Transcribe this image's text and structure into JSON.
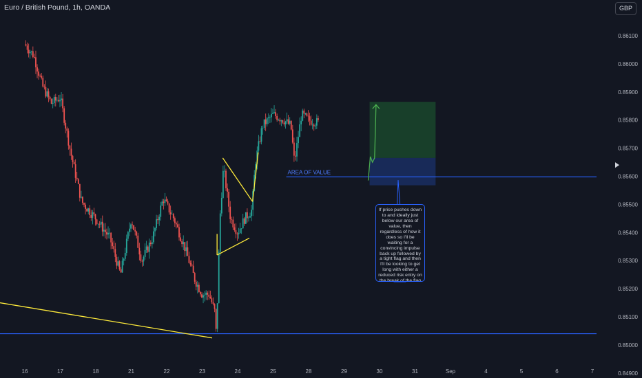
{
  "header": {
    "title": "Euro / British Pound, 1h, OANDA",
    "currency_button": "GBP"
  },
  "annotations": {
    "area_of_value_label": "AREA OF VALUE",
    "note": "If price pushes down to and ideally just below our area of value, then regardless of how it does so I'll be waiting for a convincing impulse back up followed by a tight flag and then I'll be looking to get long with either a reduced risk entry on the break of the flag or a risk entry within it."
  },
  "colors": {
    "background": "#131722",
    "bull": "#26a69a",
    "bear": "#ef5350",
    "level_line": "#2962ff",
    "trendline": "#ffeb3b",
    "target_zone": "#1b4d2e",
    "stop_zone": "#1a2f66",
    "projection": "#4caf50"
  },
  "chart_data": {
    "type": "candlestick",
    "title": "Euro / British Pound, 1h, OANDA",
    "x_tick_labels": [
      "16",
      "17",
      "18",
      "21",
      "22",
      "23",
      "24",
      "25",
      "28",
      "29",
      "30",
      "31",
      "Sep",
      "4",
      "5",
      "6",
      "7"
    ],
    "y_tick_labels": [
      "0.86100",
      "0.86000",
      "0.85900",
      "0.85800",
      "0.85700",
      "0.85600",
      "0.85500",
      "0.85400",
      "0.85300",
      "0.85200",
      "0.85100",
      "0.85000",
      "0.84900"
    ],
    "y_ticks": [
      0.861,
      0.86,
      0.859,
      0.858,
      0.857,
      0.856,
      0.855,
      0.854,
      0.853,
      0.852,
      0.851,
      0.85,
      0.849
    ],
    "ylim": [
      0.8485,
      0.8624
    ],
    "price_path": [
      {
        "x": 0.0,
        "y": 0.8607
      },
      {
        "x": 0.25,
        "y": 0.8603
      },
      {
        "x": 0.5,
        "y": 0.8592
      },
      {
        "x": 0.75,
        "y": 0.8586
      },
      {
        "x": 1.0,
        "y": 0.8588
      },
      {
        "x": 1.3,
        "y": 0.8568
      },
      {
        "x": 1.6,
        "y": 0.8551
      },
      {
        "x": 2.0,
        "y": 0.8545
      },
      {
        "x": 2.4,
        "y": 0.8538
      },
      {
        "x": 2.7,
        "y": 0.8525
      },
      {
        "x": 3.0,
        "y": 0.8545
      },
      {
        "x": 3.3,
        "y": 0.853
      },
      {
        "x": 3.6,
        "y": 0.8538
      },
      {
        "x": 3.9,
        "y": 0.8552
      },
      {
        "x": 4.2,
        "y": 0.8545
      },
      {
        "x": 4.5,
        "y": 0.8535
      },
      {
        "x": 4.8,
        "y": 0.8523
      },
      {
        "x": 5.0,
        "y": 0.8518
      },
      {
        "x": 5.2,
        "y": 0.8518
      },
      {
        "x": 5.35,
        "y": 0.8512
      },
      {
        "x": 5.4,
        "y": 0.8503
      },
      {
        "x": 5.5,
        "y": 0.8545
      },
      {
        "x": 5.6,
        "y": 0.8563
      },
      {
        "x": 5.8,
        "y": 0.8545
      },
      {
        "x": 6.0,
        "y": 0.854
      },
      {
        "x": 6.2,
        "y": 0.8545
      },
      {
        "x": 6.4,
        "y": 0.8548
      },
      {
        "x": 6.5,
        "y": 0.8565
      },
      {
        "x": 6.7,
        "y": 0.8578
      },
      {
        "x": 7.0,
        "y": 0.8582
      },
      {
        "x": 7.3,
        "y": 0.858
      },
      {
        "x": 7.5,
        "y": 0.8578
      },
      {
        "x": 7.6,
        "y": 0.8565
      },
      {
        "x": 7.8,
        "y": 0.8582
      },
      {
        "x": 8.0,
        "y": 0.858
      },
      {
        "x": 8.3,
        "y": 0.8579
      }
    ],
    "horizontal_levels": [
      {
        "price": 0.85598,
        "x_start": 7.37
      },
      {
        "price": 0.8504,
        "x_start": -0.7
      }
    ],
    "trendlines": [
      {
        "x1": -0.7,
        "y1": 0.8515,
        "x2": 5.28,
        "y2": 0.85025
      },
      {
        "x1": 5.42,
        "y1": 0.8532,
        "x2": 6.33,
        "y2": 0.8538
      },
      {
        "x1": 5.58,
        "y1": 0.85665,
        "x2": 6.42,
        "y2": 0.8551
      },
      {
        "x1": 6.42,
        "y1": 0.8551,
        "x2": 6.58,
        "y2": 0.85685
      },
      {
        "x1": 5.42,
        "y1": 0.8532,
        "x2": 5.42,
        "y2": 0.85395
      }
    ],
    "position_tool": {
      "x_start": 9.72,
      "x_end": 11.58,
      "target_top": 0.85865,
      "entry": 0.85665,
      "stop_bottom": 0.85568
    },
    "projection_path": [
      {
        "x": 9.68,
        "y": 0.85585
      },
      {
        "x": 9.74,
        "y": 0.8567
      },
      {
        "x": 9.8,
        "y": 0.8565
      },
      {
        "x": 9.86,
        "y": 0.85665
      },
      {
        "x": 9.9,
        "y": 0.85855
      }
    ],
    "current_price": 0.8564,
    "grid": false,
    "legend": "none"
  }
}
